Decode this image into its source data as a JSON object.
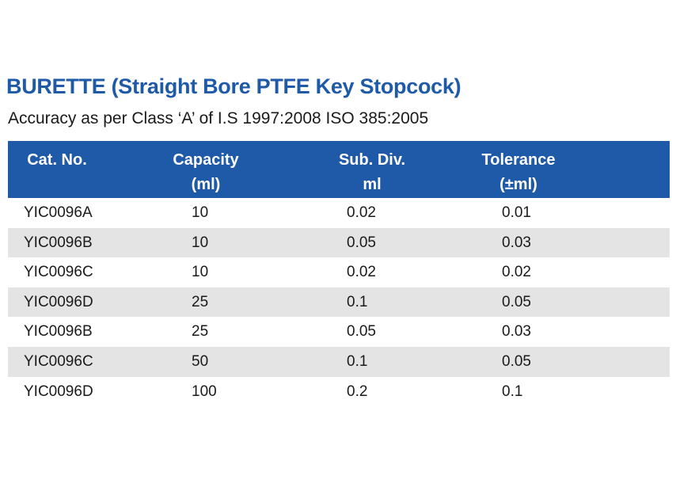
{
  "title": "BURETTE (Straight Bore PTFE Key Stopcock)",
  "subtitle": "Accuracy as per Class ‘A’ of I.S 1997:2008 ISO 385:2005",
  "table": {
    "headers": [
      {
        "line1": "Cat. No.",
        "line2": ""
      },
      {
        "line1": "Capacity",
        "line2": "(ml)"
      },
      {
        "line1": "Sub. Div.",
        "line2": "ml"
      },
      {
        "line1": "Tolerance",
        "line2": "(±ml)"
      }
    ],
    "rows": [
      [
        "YIC0096A",
        "10",
        "0.02",
        "0.01"
      ],
      [
        "YIC0096B",
        "10",
        "0.05",
        "0.03"
      ],
      [
        "YIC0096C",
        "10",
        "0.02",
        "0.02"
      ],
      [
        "YIC0096D",
        "25",
        "0.1",
        "0.05"
      ],
      [
        "YIC0096B",
        "25",
        "0.05",
        "0.03"
      ],
      [
        "YIC0096C",
        "50",
        "0.1",
        "0.05"
      ],
      [
        "YIC0096D",
        "100",
        "0.2",
        "0.1"
      ]
    ]
  },
  "colors": {
    "accent": "#1e5aa8",
    "row_shade": "#e4e4e4"
  }
}
